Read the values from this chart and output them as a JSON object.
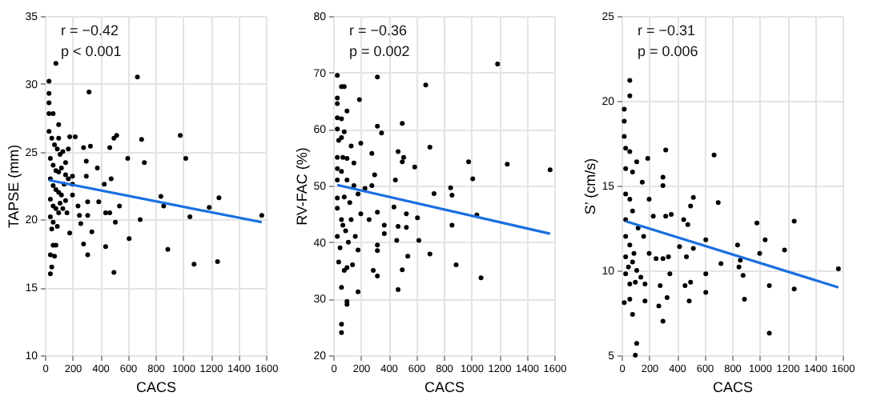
{
  "chart_data": [
    {
      "type": "scatter",
      "xlabel": "CACS",
      "ylabel": "TAPSE (mm)",
      "annotations": [
        "r = −0.42",
        "p < 0.001"
      ],
      "xlim": [
        0,
        1600
      ],
      "xticks": [
        0,
        200,
        400,
        600,
        800,
        1000,
        1200,
        1400,
        1600
      ],
      "ylim": [
        10,
        35
      ],
      "yticks": [
        10,
        15,
        20,
        25,
        30,
        35
      ],
      "grid": true,
      "marker": "circle",
      "series": [
        {
          "color": "#000000",
          "x": [
            80,
            30,
            670,
            320,
            30,
            30,
            30,
            60,
            100,
            180,
            220,
            280,
            330,
            470,
            500,
            520,
            600,
            700,
            720,
            980,
            1020,
            380,
            300,
            480,
            300,
            200,
            430,
            840,
            860,
            1260,
            1190,
            1570,
            1050,
            690,
            510,
            540,
            440,
            470,
            390,
            310,
            310,
            240,
            250,
            180,
            160,
            260,
            340,
            440,
            280,
            610,
            310,
            890,
            1080,
            1250,
            500,
            40,
            50,
            70,
            60,
            80,
            40,
            30,
            50,
            70,
            90,
            110,
            130,
            40,
            60,
            80,
            100,
            120,
            150,
            170,
            40,
            60,
            80,
            100,
            120,
            140,
            40,
            60,
            80,
            100,
            130,
            40,
            60,
            90,
            50,
            110,
            150,
            200,
            200,
            150,
            170,
            100
          ],
          "values": [
            31.5,
            30.2,
            30.5,
            29.4,
            29.3,
            28.6,
            27.8,
            27.8,
            27.0,
            26.1,
            26.1,
            25.3,
            25.4,
            25.3,
            26.0,
            26.2,
            24.5,
            25.9,
            24.2,
            26.2,
            24.5,
            23.8,
            24.3,
            23.0,
            23.2,
            22.6,
            22.6,
            21.7,
            21.0,
            21.6,
            20.9,
            20.3,
            20.2,
            20.0,
            19.8,
            21.0,
            20.5,
            20.5,
            21.3,
            21.3,
            20.3,
            21.0,
            20.3,
            19.0,
            20.5,
            19.7,
            19.1,
            18.0,
            18.2,
            18.6,
            17.4,
            17.8,
            16.7,
            16.9,
            16.1,
            16.0,
            16.5,
            17.3,
            18.1,
            18.1,
            17.4,
            26.5,
            26.0,
            25.5,
            25.2,
            24.8,
            25.0,
            24.5,
            24.0,
            23.6,
            23.5,
            23.8,
            23.3,
            23.0,
            23.0,
            22.5,
            22.2,
            22.0,
            21.8,
            22.6,
            21.5,
            21.0,
            20.8,
            20.5,
            20.8,
            20.2,
            19.8,
            19.5,
            19.3,
            21.2,
            21.4,
            21.8,
            23.2,
            24.2,
            25.2,
            26.0
          ]
        },
        {
          "type": "line",
          "color": "#1a6fe0",
          "marker": "none",
          "x": [
            30,
            1570
          ],
          "values": [
            22.9,
            19.8
          ]
        }
      ]
    },
    {
      "type": "scatter",
      "xlabel": "CACS",
      "ylabel": "RV-FAC (%)",
      "annotations": [
        "r = −0.36",
        "p = 0.002"
      ],
      "xlim": [
        0,
        1600
      ],
      "xticks": [
        0,
        200,
        400,
        600,
        800,
        1000,
        1200,
        1400,
        1600
      ],
      "ylim": [
        20,
        80
      ],
      "yticks": [
        20,
        30,
        40,
        50,
        60,
        70,
        80
      ],
      "grid": true,
      "marker": "circle",
      "series": [
        {
          "color": "#000000",
          "x": [
            30,
            320,
            1190,
            670,
            60,
            80,
            30,
            190,
            30,
            100,
            30,
            60,
            500,
            320,
            30,
            80,
            350,
            60,
            200,
            130,
            700,
            470,
            30,
            280,
            510,
            500,
            980,
            1260,
            1570,
            590,
            150,
            30,
            100,
            60,
            300,
            450,
            1010,
            30,
            850,
            860,
            730,
            280,
            230,
            180,
            30,
            80,
            120,
            200,
            260,
            320,
            440,
            530,
            610,
            1040,
            370,
            370,
            470,
            530,
            860,
            30,
            60,
            90,
            110,
            30,
            160,
            180,
            320,
            320,
            460,
            620,
            700,
            540,
            890,
            500,
            1070,
            290,
            320,
            40,
            80,
            100,
            140,
            60,
            180,
            470,
            100,
            100,
            60,
            60,
            50,
            70,
            130,
            150,
            100,
            70,
            40
          ],
          "values": [
            69.5,
            69.2,
            71.5,
            67.8,
            67.5,
            67.5,
            65.5,
            65.2,
            64.5,
            63.2,
            62,
            61.8,
            61,
            60.5,
            60,
            59.5,
            59.3,
            58.5,
            57.5,
            57,
            56.8,
            56,
            55,
            55.7,
            55,
            54.2,
            54.2,
            53.8,
            52.8,
            53.3,
            54,
            53,
            54.8,
            52.5,
            51.9,
            51,
            51.2,
            51,
            49.6,
            48.3,
            48.6,
            50,
            49.5,
            48.5,
            47.8,
            48,
            47,
            45,
            44,
            45.3,
            46.2,
            45,
            44.3,
            44.8,
            43,
            41.5,
            42.8,
            42.6,
            43,
            46,
            44,
            42,
            40,
            41,
            41,
            38.6,
            39.5,
            38.5,
            40.3,
            40.3,
            37.9,
            37.5,
            36,
            35.1,
            33.7,
            35,
            34,
            36.5,
            35,
            35.5,
            36,
            32,
            31.2,
            31.6,
            29.5,
            29,
            25.5,
            24,
            39,
            43,
            44,
            50,
            51,
            55,
            58
          ]
        },
        {
          "type": "line",
          "color": "#1a6fe0",
          "marker": "none",
          "x": [
            30,
            1570
          ],
          "values": [
            50.1,
            41.5
          ]
        }
      ]
    },
    {
      "type": "scatter",
      "xlabel": "CACS",
      "ylabel": "S’ (cm/s)",
      "annotations": [
        "r = −0.31",
        "p = 0.006"
      ],
      "xlim": [
        0,
        1600
      ],
      "xticks": [
        0,
        200,
        400,
        600,
        800,
        1000,
        1200,
        1400,
        1600
      ],
      "ylim": [
        5,
        25
      ],
      "yticks": [
        5,
        10,
        15,
        20,
        25
      ],
      "grid": true,
      "marker": "circle",
      "series": [
        {
          "color": "#000000",
          "x": [
            60,
            60,
            20,
            20,
            20,
            30,
            60,
            320,
            670,
            190,
            110,
            30,
            80,
            300,
            150,
            300,
            30,
            60,
            520,
            200,
            500,
            700,
            360,
            320,
            230,
            450,
            980,
            1250,
            480,
            1040,
            610,
            840,
            1180,
            1000,
            30,
            80,
            120,
            30,
            60,
            90,
            30,
            50,
            80,
            110,
            30,
            60,
            100,
            140,
            160,
            200,
            250,
            300,
            340,
            420,
            470,
            520,
            720,
            860,
            850,
            880,
            1570,
            610,
            500,
            460,
            350,
            280,
            170,
            1070,
            1250,
            610,
            330,
            490,
            890,
            170,
            270,
            60,
            20,
            80,
            300,
            1070,
            110,
            100
          ],
          "values": [
            21.2,
            20.3,
            19.5,
            18.8,
            17.9,
            17.2,
            17.0,
            17.1,
            16.8,
            16.6,
            16.4,
            16,
            15.8,
            15.5,
            15.2,
            15,
            14.5,
            14.2,
            14.3,
            14.2,
            13.8,
            14,
            13.3,
            13.2,
            13.2,
            13,
            12.8,
            12.9,
            12.7,
            11.8,
            11.8,
            11.5,
            11.2,
            11,
            13,
            13.5,
            12.5,
            12,
            11.5,
            11,
            10.8,
            10.2,
            10.5,
            10,
            9.8,
            9.2,
            9.3,
            9.6,
            12,
            11,
            10.7,
            10.7,
            10.8,
            11.4,
            10.8,
            11.3,
            10.4,
            10.6,
            10.2,
            9.7,
            10.1,
            9.8,
            9.3,
            9.1,
            9.8,
            9.1,
            9.2,
            9.1,
            8.9,
            8.7,
            8.4,
            8.2,
            8.3,
            8.2,
            7.9,
            8.3,
            8.1,
            7.4,
            7,
            6.3,
            5.7,
            5.0
          ]
        },
        {
          "type": "line",
          "color": "#1a6fe0",
          "marker": "none",
          "x": [
            30,
            1570
          ],
          "values": [
            12.9,
            9.0
          ]
        }
      ]
    }
  ]
}
